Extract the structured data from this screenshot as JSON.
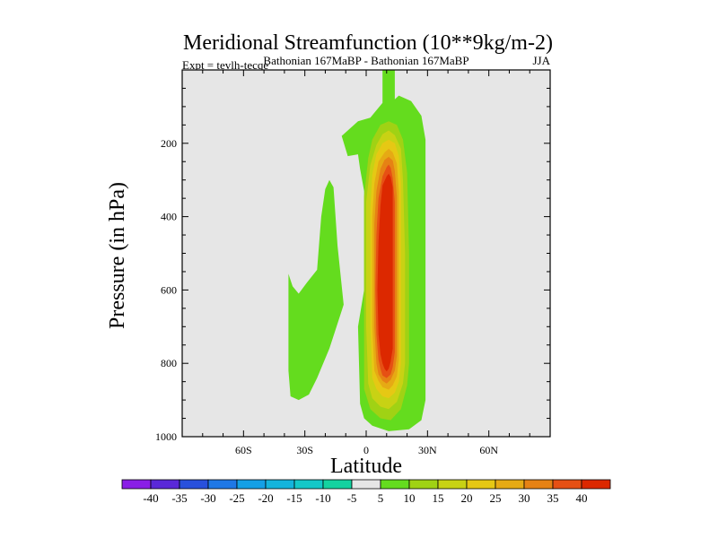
{
  "chart_data": {
    "type": "contour",
    "title": "Meridional Streamfunction (10**9kg/m-2)",
    "subtitle": "Bathonian 167MaBP - Bathonian 167MaBP",
    "expt_label": "Expt = tevlh-tecqe",
    "season_label": "JJA",
    "xlabel": "Latitude",
    "ylabel": "Pressure (in hPa)",
    "xlim": [
      -90,
      90
    ],
    "ylim": [
      1000,
      0
    ],
    "x_ticks": [
      {
        "value": -60,
        "label": "60S"
      },
      {
        "value": -30,
        "label": "30S"
      },
      {
        "value": 0,
        "label": "0"
      },
      {
        "value": 30,
        "label": "30N"
      },
      {
        "value": 60,
        "label": "60N"
      }
    ],
    "y_ticks": [
      {
        "value": 200,
        "label": "200"
      },
      {
        "value": 400,
        "label": "400"
      },
      {
        "value": 600,
        "label": "600"
      },
      {
        "value": 800,
        "label": "800"
      },
      {
        "value": 1000,
        "label": "1000"
      }
    ],
    "background_color": "#e6e6e6",
    "colorbar": {
      "labels": [
        "-40",
        "-35",
        "-30",
        "-25",
        "-20",
        "-15",
        "-10",
        "-5",
        "5",
        "10",
        "15",
        "20",
        "25",
        "30",
        "35",
        "40"
      ],
      "colors": [
        "#8a1ee6",
        "#5a28d8",
        "#2850dc",
        "#1e78e6",
        "#14a0e6",
        "#14b4dc",
        "#14c8c8",
        "#14d2a0",
        "#e6e6e6",
        "#64dc1e",
        "#a0d214",
        "#c8d214",
        "#e6c814",
        "#e6aa14",
        "#e68214",
        "#e65014",
        "#dc2800"
      ]
    },
    "cells": [
      {
        "name": "southern-cell",
        "value_band": "5",
        "points": [
          [
            -38,
            556
          ],
          [
            -36,
            590
          ],
          [
            -33,
            610
          ],
          [
            -29,
            580
          ],
          [
            -24,
            545
          ],
          [
            -22,
            400
          ],
          [
            -20,
            325
          ],
          [
            -18,
            300
          ],
          [
            -16,
            320
          ],
          [
            -14,
            480
          ],
          [
            -11,
            640
          ],
          [
            -18,
            760
          ],
          [
            -24,
            840
          ],
          [
            -28,
            885
          ],
          [
            -33,
            900
          ],
          [
            -37,
            890
          ],
          [
            -38,
            820
          ]
        ]
      },
      {
        "name": "hadley-outer",
        "value_band": "5",
        "points": [
          [
            -1,
            600
          ],
          [
            -1,
            330
          ],
          [
            -3,
            270
          ],
          [
            -4,
            230
          ],
          [
            -9,
            235
          ],
          [
            -12,
            180
          ],
          [
            -4,
            140
          ],
          [
            2,
            130
          ],
          [
            8,
            90
          ],
          [
            8,
            0
          ],
          [
            14,
            0
          ],
          [
            14,
            80
          ],
          [
            16,
            70
          ],
          [
            22,
            85
          ],
          [
            27,
            125
          ],
          [
            29,
            190
          ],
          [
            29,
            900
          ],
          [
            27,
            955
          ],
          [
            21,
            980
          ],
          [
            11,
            985
          ],
          [
            3,
            970
          ],
          [
            -1,
            950
          ],
          [
            -3,
            910
          ],
          [
            -4,
            700
          ]
        ]
      },
      {
        "name": "hadley-band-10",
        "value_band": "10",
        "points": [
          [
            -1,
            345
          ],
          [
            1,
            240
          ],
          [
            3,
            190
          ],
          [
            7,
            150
          ],
          [
            11,
            140
          ],
          [
            15,
            150
          ],
          [
            18,
            190
          ],
          [
            20,
            280
          ],
          [
            21,
            500
          ],
          [
            21,
            800
          ],
          [
            20,
            860
          ],
          [
            17,
            925
          ],
          [
            12,
            955
          ],
          [
            7,
            950
          ],
          [
            2,
            925
          ],
          [
            -1,
            870
          ],
          [
            -1,
            700
          ]
        ]
      },
      {
        "name": "hadley-band-15",
        "value_band": "15",
        "points": [
          [
            0,
            360
          ],
          [
            2,
            260
          ],
          [
            5,
            205
          ],
          [
            8,
            175
          ],
          [
            11,
            165
          ],
          [
            14,
            178
          ],
          [
            17,
            215
          ],
          [
            18,
            300
          ],
          [
            19,
            500
          ],
          [
            19,
            800
          ],
          [
            18,
            855
          ],
          [
            15,
            905
          ],
          [
            11,
            925
          ],
          [
            7,
            918
          ],
          [
            3,
            895
          ],
          [
            1,
            855
          ],
          [
            0,
            700
          ]
        ]
      },
      {
        "name": "hadley-band-20",
        "value_band": "20",
        "points": [
          [
            2,
            380
          ],
          [
            3,
            285
          ],
          [
            5,
            230
          ],
          [
            8,
            200
          ],
          [
            11,
            190
          ],
          [
            14,
            200
          ],
          [
            16,
            235
          ],
          [
            17,
            310
          ],
          [
            17,
            500
          ],
          [
            17,
            800
          ],
          [
            16,
            850
          ],
          [
            14,
            880
          ],
          [
            11,
            895
          ],
          [
            8,
            890
          ],
          [
            5,
            870
          ],
          [
            3,
            840
          ],
          [
            2,
            700
          ]
        ]
      },
      {
        "name": "hadley-band-25",
        "value_band": "25",
        "points": [
          [
            3,
            400
          ],
          [
            4,
            310
          ],
          [
            6,
            250
          ],
          [
            9,
            225
          ],
          [
            11,
            215
          ],
          [
            13,
            225
          ],
          [
            15,
            255
          ],
          [
            16,
            330
          ],
          [
            16,
            500
          ],
          [
            16,
            790
          ],
          [
            15,
            835
          ],
          [
            13,
            860
          ],
          [
            11,
            872
          ],
          [
            8,
            865
          ],
          [
            6,
            848
          ],
          [
            4,
            820
          ],
          [
            3,
            700
          ]
        ]
      },
      {
        "name": "hadley-band-30",
        "value_band": "30",
        "points": [
          [
            4,
            420
          ],
          [
            5,
            330
          ],
          [
            7,
            270
          ],
          [
            9,
            245
          ],
          [
            11,
            237
          ],
          [
            13,
            247
          ],
          [
            14,
            275
          ],
          [
            15,
            345
          ],
          [
            15,
            500
          ],
          [
            15,
            780
          ],
          [
            14,
            820
          ],
          [
            12,
            845
          ],
          [
            10,
            855
          ],
          [
            8,
            848
          ],
          [
            6,
            830
          ],
          [
            5,
            800
          ],
          [
            4,
            700
          ]
        ]
      },
      {
        "name": "hadley-band-35",
        "value_band": "35",
        "points": [
          [
            5,
            450
          ],
          [
            6,
            350
          ],
          [
            8,
            290
          ],
          [
            10,
            265
          ],
          [
            11,
            258
          ],
          [
            12,
            267
          ],
          [
            13,
            295
          ],
          [
            14,
            360
          ],
          [
            14,
            500
          ],
          [
            14,
            770
          ],
          [
            13,
            810
          ],
          [
            12,
            830
          ],
          [
            10,
            840
          ],
          [
            8,
            833
          ],
          [
            7,
            815
          ],
          [
            6,
            790
          ],
          [
            5,
            720
          ],
          [
            4.5,
            600
          ]
        ]
      },
      {
        "name": "hadley-band-40",
        "value_band": "40",
        "points": [
          [
            6,
            470
          ],
          [
            7,
            370
          ],
          [
            8,
            315
          ],
          [
            10,
            290
          ],
          [
            11,
            283
          ],
          [
            12,
            292
          ],
          [
            13,
            320
          ],
          [
            13,
            380
          ],
          [
            13,
            500
          ],
          [
            13,
            760
          ],
          [
            12,
            795
          ],
          [
            11,
            815
          ],
          [
            10,
            822
          ],
          [
            9,
            815
          ],
          [
            8,
            800
          ],
          [
            7,
            775
          ],
          [
            6,
            720
          ],
          [
            5.5,
            600
          ]
        ]
      }
    ]
  }
}
